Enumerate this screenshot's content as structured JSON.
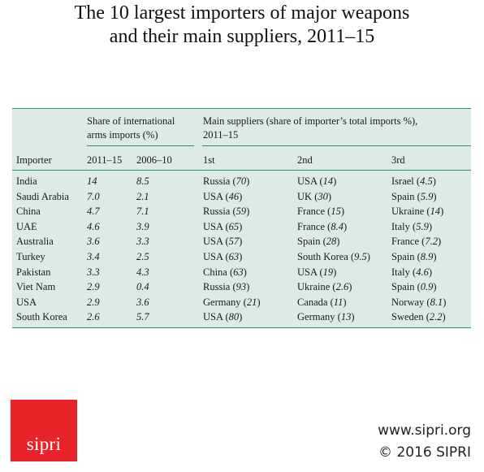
{
  "title": {
    "line1": "The 10 largest importers of major weapons",
    "line2": "and their main suppliers, 2011–15"
  },
  "table": {
    "group_header_share": [
      "Share of international",
      "arms imports (%)"
    ],
    "group_header_suppliers": [
      "Main suppliers (share of importer’s total imports %),",
      "2011–15"
    ],
    "columns": [
      "Importer",
      "2011–15",
      "2006–10",
      "1st",
      "2nd",
      "3rd"
    ],
    "rows": [
      {
        "importer": "India",
        "share_2011_15": "14",
        "share_2006_10": "8.5",
        "s1": "Russia",
        "s1v": "70",
        "s2": "USA",
        "s2v": "14",
        "s3": "Israel",
        "s3v": "4.5"
      },
      {
        "importer": "Saudi Arabia",
        "share_2011_15": "7.0",
        "share_2006_10": "2.1",
        "s1": "USA",
        "s1v": "46",
        "s2": "UK",
        "s2v": "30",
        "s3": "Spain",
        "s3v": "5.9"
      },
      {
        "importer": "China",
        "share_2011_15": "4.7",
        "share_2006_10": "7.1",
        "s1": "Russia",
        "s1v": "59",
        "s2": "France",
        "s2v": "15",
        "s3": "Ukraine",
        "s3v": "14"
      },
      {
        "importer": "UAE",
        "share_2011_15": "4.6",
        "share_2006_10": "3.9",
        "s1": "USA",
        "s1v": "65",
        "s2": "France",
        "s2v": "8.4",
        "s3": "Italy",
        "s3v": "5.9"
      },
      {
        "importer": "Australia",
        "share_2011_15": "3.6",
        "share_2006_10": "3.3",
        "s1": "USA",
        "s1v": "57",
        "s2": "Spain",
        "s2v": "28",
        "s3": "France",
        "s3v": "7.2"
      },
      {
        "importer": "Turkey",
        "share_2011_15": "3.4",
        "share_2006_10": "2.5",
        "s1": "USA",
        "s1v": "63",
        "s2": "South Korea",
        "s2v": "9.5",
        "s3": "Spain",
        "s3v": "8.9"
      },
      {
        "importer": "Pakistan",
        "share_2011_15": "3.3",
        "share_2006_10": "4.3",
        "s1": "China",
        "s1v": "63",
        "s2": "USA",
        "s2v": "19",
        "s3": "Italy",
        "s3v": "4.6"
      },
      {
        "importer": "Viet Nam",
        "share_2011_15": "2.9",
        "share_2006_10": "0.4",
        "s1": "Russia",
        "s1v": "93",
        "s2": "Ukraine",
        "s2v": "2.6",
        "s3": "Spain",
        "s3v": "0.9"
      },
      {
        "importer": "USA",
        "share_2011_15": "2.9",
        "share_2006_10": "3.6",
        "s1": "Germany",
        "s1v": "21",
        "s2": "Canada",
        "s2v": "11",
        "s3": "Norway",
        "s3v": "8.1"
      },
      {
        "importer": "South Korea",
        "share_2011_15": "2.6",
        "share_2006_10": "5.7",
        "s1": "USA",
        "s1v": "80",
        "s2": "Germany",
        "s2v": "13",
        "s3": "Sweden",
        "s3v": "2.2"
      }
    ]
  },
  "logo": {
    "text": "sipri"
  },
  "footer": {
    "url": "www.sipri.org",
    "copyright": "© 2016 SIPRI"
  },
  "colors": {
    "panel_bg": "#dcebe5",
    "rule": "#2a8a80",
    "logo_bg": "#e8242a"
  }
}
